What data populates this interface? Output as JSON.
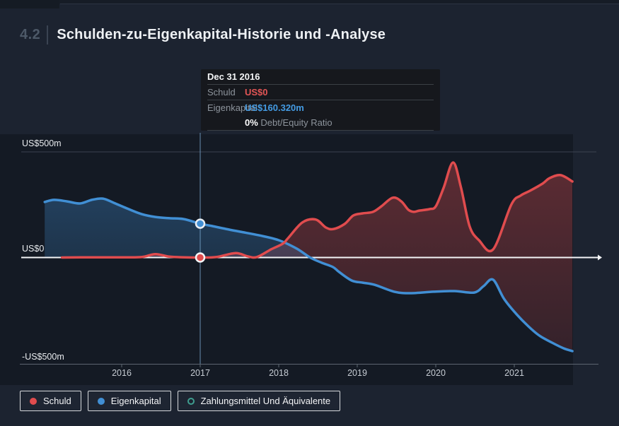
{
  "header": {
    "section_number": "4.2",
    "title": "Schulden-zu-Eigenkapital-Historie und -Analyse"
  },
  "tooltip": {
    "date": "Dec 31 2016",
    "rows": [
      {
        "label": "Schuld",
        "value": "US$0"
      },
      {
        "label": "Eigenkapital",
        "value": "US$160.320m"
      }
    ],
    "ratio_value": "0%",
    "ratio_label": "Debt/Equity Ratio"
  },
  "axes": {
    "y_labels": [
      "US$500m",
      "US$0",
      "-US$500m"
    ],
    "x_labels": [
      "2016",
      "2017",
      "2018",
      "2019",
      "2020",
      "2021"
    ]
  },
  "legend": [
    {
      "label": "Schuld",
      "color": "#e04c4e",
      "marker": "filled"
    },
    {
      "label": "Eigenkapital",
      "color": "#418fd4",
      "marker": "filled"
    },
    {
      "label": "Zahlungsmittel Und Äquivalente",
      "color": "#3f9e8f",
      "marker": "ring"
    }
  ],
  "colors": {
    "page_bg": "#1c2330",
    "plot_bg": "#141a24",
    "debt": "#e04c4e",
    "equity": "#418fd4",
    "cash": "#3f9e8f",
    "zero_line": "#f4f5f7",
    "grid_line": "#3b4350"
  },
  "chart_data": {
    "type": "area",
    "title": "Schulden-zu-Eigenkapital-Historie und -Analyse",
    "unit": "US$ millions",
    "ylim": [
      -500,
      500
    ],
    "x_range_years": [
      2015.0,
      2021.78
    ],
    "x_tick_years": [
      2016,
      2017,
      2018,
      2019,
      2020,
      2021
    ],
    "y_tick_labels": [
      "US$500m",
      "US$0",
      "-US$500m"
    ],
    "legend_position": "bottom-left",
    "series": [
      {
        "name": "Schuld",
        "color": "#e04c4e",
        "points": [
          [
            2015.24,
            0
          ],
          [
            2015.6,
            1
          ],
          [
            2016,
            1
          ],
          [
            2016.25,
            2
          ],
          [
            2016.43,
            16
          ],
          [
            2016.61,
            4
          ],
          [
            2016.8,
            1
          ],
          [
            2017,
            0
          ],
          [
            2017.2,
            2
          ],
          [
            2017.45,
            21
          ],
          [
            2017.6,
            6
          ],
          [
            2017.72,
            2
          ],
          [
            2017.9,
            38
          ],
          [
            2018.05,
            65
          ],
          [
            2018.12,
            92
          ],
          [
            2018.3,
            166
          ],
          [
            2018.47,
            180
          ],
          [
            2018.6,
            142
          ],
          [
            2018.7,
            135
          ],
          [
            2018.84,
            159
          ],
          [
            2018.95,
            199
          ],
          [
            2019.07,
            209
          ],
          [
            2019.2,
            216
          ],
          [
            2019.31,
            243
          ],
          [
            2019.45,
            283
          ],
          [
            2019.56,
            266
          ],
          [
            2019.65,
            226
          ],
          [
            2019.72,
            216
          ],
          [
            2019.79,
            222
          ],
          [
            2019.92,
            229
          ],
          [
            2020,
            242
          ],
          [
            2020.1,
            330
          ],
          [
            2020.22,
            450
          ],
          [
            2020.32,
            333
          ],
          [
            2020.43,
            149
          ],
          [
            2020.55,
            82
          ],
          [
            2020.73,
            38
          ],
          [
            2020.96,
            249
          ],
          [
            2021.08,
            293
          ],
          [
            2021.2,
            316
          ],
          [
            2021.36,
            350
          ],
          [
            2021.45,
            376
          ],
          [
            2021.59,
            390
          ],
          [
            2021.74,
            360
          ]
        ]
      },
      {
        "name": "Eigenkapital",
        "color": "#418fd4",
        "points": [
          [
            2015.02,
            263
          ],
          [
            2015.14,
            273
          ],
          [
            2015.3,
            266
          ],
          [
            2015.47,
            256
          ],
          [
            2015.62,
            273
          ],
          [
            2015.76,
            279
          ],
          [
            2015.9,
            259
          ],
          [
            2016.07,
            232
          ],
          [
            2016.25,
            206
          ],
          [
            2016.43,
            192
          ],
          [
            2016.61,
            186
          ],
          [
            2016.79,
            182
          ],
          [
            2017,
            160.32
          ],
          [
            2017.15,
            149
          ],
          [
            2017.33,
            135
          ],
          [
            2017.51,
            122
          ],
          [
            2017.75,
            105
          ],
          [
            2018,
            82
          ],
          [
            2018.23,
            42
          ],
          [
            2018.4,
            0
          ],
          [
            2018.55,
            -25
          ],
          [
            2018.69,
            -45
          ],
          [
            2018.77,
            -69
          ],
          [
            2018.93,
            -109
          ],
          [
            2019.07,
            -119
          ],
          [
            2019.22,
            -129
          ],
          [
            2019.47,
            -162
          ],
          [
            2019.68,
            -169
          ],
          [
            2019.97,
            -162
          ],
          [
            2020.24,
            -159
          ],
          [
            2020.49,
            -166
          ],
          [
            2020.61,
            -135
          ],
          [
            2020.73,
            -105
          ],
          [
            2020.87,
            -196
          ],
          [
            2021.03,
            -269
          ],
          [
            2021.18,
            -326
          ],
          [
            2021.32,
            -370
          ],
          [
            2021.48,
            -403
          ],
          [
            2021.63,
            -430
          ],
          [
            2021.74,
            -443
          ]
        ]
      },
      {
        "name": "Zahlungsmittel Und Äquivalente",
        "color": "#3f9e8f",
        "points": []
      }
    ],
    "highlight": {
      "date": "Dec 31 2016",
      "year": 2017.0,
      "schuld_m": 0,
      "eigenkapital_m": 160.32,
      "debt_equity_ratio": "0%"
    }
  }
}
